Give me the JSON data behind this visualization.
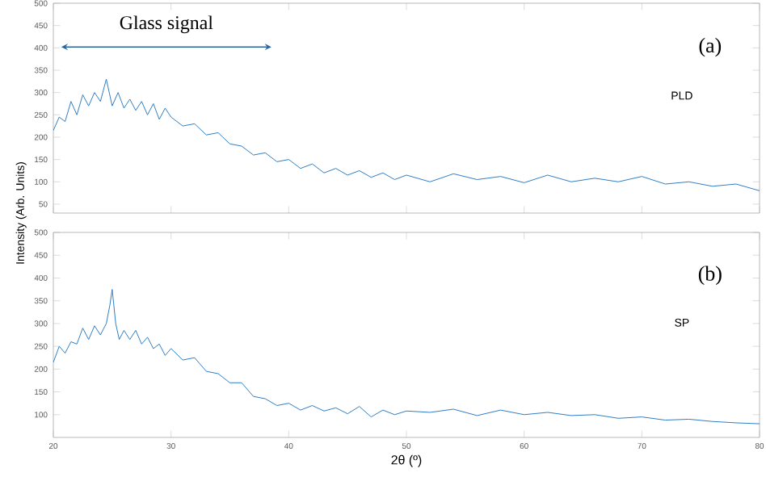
{
  "chart_data": [
    {
      "type": "line",
      "ylabel": "Intensity (Arb. Units)",
      "xlim": [
        20,
        80
      ],
      "ylim": [
        30,
        500
      ],
      "xticks": [
        20,
        30,
        40,
        50,
        60,
        70,
        80
      ],
      "yticks": [
        50,
        100,
        150,
        200,
        250,
        300,
        350,
        400,
        450,
        500
      ],
      "tick_labels": "y",
      "marker": "none",
      "annotations": [
        "Glass signal",
        "(a)",
        "PLD"
      ],
      "series": [
        {
          "color": "#2f7dc6",
          "x": [
            20,
            20.5,
            21,
            21.5,
            22,
            22.5,
            23,
            23.5,
            24,
            24.5,
            25,
            25.5,
            26,
            26.5,
            27,
            27.5,
            28,
            28.5,
            29,
            29.5,
            30,
            31,
            32,
            33,
            34,
            35,
            36,
            37,
            38,
            39,
            40,
            41,
            42,
            43,
            44,
            45,
            46,
            47,
            48,
            49,
            50,
            52,
            54,
            56,
            58,
            60,
            62,
            64,
            66,
            68,
            70,
            72,
            74,
            76,
            78,
            80
          ],
          "values": [
            215,
            245,
            235,
            280,
            250,
            295,
            270,
            300,
            280,
            330,
            270,
            300,
            265,
            285,
            260,
            280,
            250,
            275,
            240,
            265,
            245,
            225,
            230,
            205,
            210,
            185,
            180,
            160,
            165,
            145,
            150,
            130,
            140,
            120,
            130,
            115,
            125,
            110,
            120,
            105,
            115,
            100,
            118,
            105,
            112,
            98,
            115,
            100,
            108,
            100,
            112,
            95,
            100,
            90,
            95,
            80
          ]
        }
      ]
    },
    {
      "type": "line",
      "xlabel": "2θ (º)",
      "xlim": [
        20,
        80
      ],
      "ylim": [
        50,
        500
      ],
      "xticks": [
        20,
        30,
        40,
        50,
        60,
        70,
        80
      ],
      "yticks": [
        100,
        150,
        200,
        250,
        300,
        350,
        400,
        450,
        500
      ],
      "marker": "none",
      "annotations": [
        "(b)",
        "SP"
      ],
      "series": [
        {
          "color": "#2f7dc6",
          "x": [
            20,
            20.5,
            21,
            21.5,
            22,
            22.5,
            23,
            23.5,
            24,
            24.5,
            24.8,
            25,
            25.3,
            25.6,
            26,
            26.5,
            27,
            27.5,
            28,
            28.5,
            29,
            29.5,
            30,
            31,
            32,
            33,
            34,
            35,
            36,
            37,
            38,
            39,
            40,
            41,
            42,
            43,
            44,
            45,
            46,
            47,
            48,
            49,
            50,
            52,
            54,
            56,
            58,
            60,
            62,
            64,
            66,
            68,
            70,
            72,
            74,
            76,
            78,
            80
          ],
          "values": [
            215,
            250,
            235,
            260,
            255,
            290,
            265,
            295,
            275,
            300,
            340,
            375,
            300,
            265,
            285,
            265,
            285,
            255,
            270,
            245,
            255,
            230,
            245,
            220,
            225,
            195,
            190,
            170,
            170,
            140,
            135,
            120,
            125,
            110,
            120,
            108,
            115,
            102,
            118,
            95,
            110,
            100,
            108,
            105,
            112,
            98,
            110,
            100,
            105,
            98,
            100,
            92,
            95,
            88,
            90,
            85,
            82,
            80
          ]
        }
      ]
    }
  ]
}
